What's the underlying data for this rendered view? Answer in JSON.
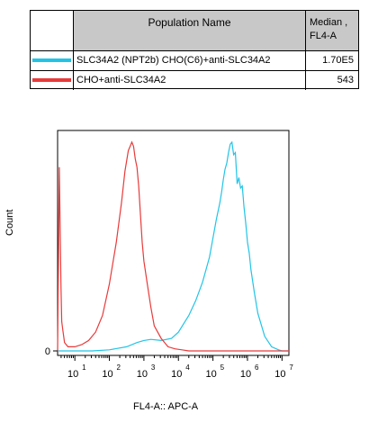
{
  "legend_table": {
    "header_name": "Population Name",
    "header_median": "Median ,",
    "header_median_2": "FL4-A",
    "rows": [
      {
        "name": "SLC34A2 (NPT2b) CHO(C6)+anti-SLC34A2",
        "median": "1.70E5",
        "color": "#22c4e6"
      },
      {
        "name": "CHO+anti-SLC34A2",
        "median": "543",
        "color": "#e83a3a"
      }
    ]
  },
  "chart_data": {
    "type": "line",
    "xlabel": "FL4-A:: APC-A",
    "ylabel": "Count",
    "xscale": "log",
    "xlim": [
      0.5,
      7.2
    ],
    "ylim": [
      0,
      1
    ],
    "y_ticks": [
      {
        "value": 0,
        "label": "0"
      }
    ],
    "x_ticks": [
      {
        "exp": 1,
        "base": "10",
        "sup": "1"
      },
      {
        "exp": 2,
        "base": "10",
        "sup": "2"
      },
      {
        "exp": 3,
        "base": "10",
        "sup": "3"
      },
      {
        "exp": 4,
        "base": "10",
        "sup": "4"
      },
      {
        "exp": 5,
        "base": "10",
        "sup": "5"
      },
      {
        "exp": 6,
        "base": "10",
        "sup": "6"
      },
      {
        "exp": 7,
        "base": "10",
        "sup": "7"
      }
    ],
    "series": [
      {
        "name": "SLC34A2 (NPT2b) CHO(C6)+anti-SLC34A2",
        "color": "#22c4e6",
        "x_log10": [
          0.5,
          1.0,
          1.5,
          2.0,
          2.5,
          2.8,
          3.0,
          3.2,
          3.5,
          3.8,
          4.0,
          4.3,
          4.5,
          4.7,
          4.9,
          5.0,
          5.1,
          5.2,
          5.25,
          5.3,
          5.35,
          5.4,
          5.45,
          5.5,
          5.55,
          5.6,
          5.65,
          5.7,
          5.75,
          5.8,
          5.85,
          5.9,
          5.95,
          6.0,
          6.05,
          6.1,
          6.2,
          6.3,
          6.5,
          6.7,
          6.9,
          7.0,
          7.1,
          7.2
        ],
        "y": [
          0.0,
          0.0,
          0.0,
          0.005,
          0.02,
          0.04,
          0.05,
          0.055,
          0.05,
          0.06,
          0.09,
          0.17,
          0.24,
          0.33,
          0.45,
          0.54,
          0.63,
          0.71,
          0.76,
          0.82,
          0.87,
          0.9,
          0.95,
          0.99,
          1.0,
          0.94,
          0.95,
          0.8,
          0.83,
          0.78,
          0.79,
          0.69,
          0.61,
          0.52,
          0.47,
          0.39,
          0.28,
          0.18,
          0.07,
          0.02,
          0.005,
          0.0,
          0.0,
          0.0
        ]
      },
      {
        "name": "CHO+anti-SLC34A2",
        "color": "#e83a3a",
        "x_log10": [
          0.5,
          0.55,
          0.6,
          0.62,
          0.65,
          0.7,
          0.8,
          1.0,
          1.2,
          1.4,
          1.6,
          1.8,
          2.0,
          2.2,
          2.35,
          2.45,
          2.55,
          2.6,
          2.65,
          2.7,
          2.75,
          2.8,
          2.85,
          2.9,
          2.95,
          3.0,
          3.1,
          3.2,
          3.3,
          3.5,
          3.7,
          3.9,
          4.1,
          4.3,
          4.5,
          5.0,
          7.2
        ],
        "y": [
          0.0,
          0.88,
          0.3,
          0.14,
          0.1,
          0.04,
          0.02,
          0.02,
          0.03,
          0.05,
          0.09,
          0.17,
          0.32,
          0.52,
          0.71,
          0.86,
          0.96,
          0.98,
          1.0,
          0.98,
          0.92,
          0.88,
          0.79,
          0.65,
          0.52,
          0.43,
          0.32,
          0.21,
          0.12,
          0.06,
          0.02,
          0.01,
          0.005,
          0.0,
          0.0,
          0.0,
          0.0
        ]
      }
    ]
  }
}
